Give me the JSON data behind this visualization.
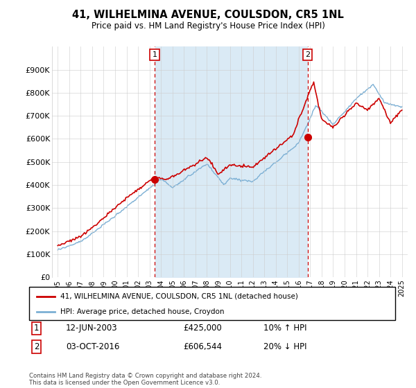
{
  "title": "41, WILHELMINA AVENUE, COULSDON, CR5 1NL",
  "subtitle": "Price paid vs. HM Land Registry's House Price Index (HPI)",
  "legend_line1": "41, WILHELMINA AVENUE, COULSDON, CR5 1NL (detached house)",
  "legend_line2": "HPI: Average price, detached house, Croydon",
  "annotation1_label": "1",
  "annotation1_date": "12-JUN-2003",
  "annotation1_price": "£425,000",
  "annotation1_hpi": "10% ↑ HPI",
  "annotation2_label": "2",
  "annotation2_date": "03-OCT-2016",
  "annotation2_price": "£606,544",
  "annotation2_hpi": "20% ↓ HPI",
  "footer": "Contains HM Land Registry data © Crown copyright and database right 2024.\nThis data is licensed under the Open Government Licence v3.0.",
  "hpi_color": "#7bafd4",
  "hpi_fill_color": "#daeaf5",
  "price_color": "#cc0000",
  "annotation_color": "#cc0000",
  "background_color": "#ffffff",
  "grid_color": "#cccccc",
  "ylim": [
    0,
    1000000
  ],
  "yticks": [
    0,
    100000,
    200000,
    300000,
    400000,
    500000,
    600000,
    700000,
    800000,
    900000
  ],
  "ytick_labels": [
    "£0",
    "£100K",
    "£200K",
    "£300K",
    "£400K",
    "£500K",
    "£600K",
    "£700K",
    "£800K",
    "£900K"
  ],
  "sale1_x": 2003.45,
  "sale1_y": 425000,
  "sale2_x": 2016.77,
  "sale2_y": 606544,
  "xmin": 1994.5,
  "xmax": 2025.5,
  "xtick_years": [
    1995,
    1996,
    1997,
    1998,
    1999,
    2000,
    2001,
    2002,
    2003,
    2004,
    2005,
    2006,
    2007,
    2008,
    2009,
    2010,
    2011,
    2012,
    2013,
    2014,
    2015,
    2016,
    2017,
    2018,
    2019,
    2020,
    2021,
    2022,
    2023,
    2024,
    2025
  ]
}
